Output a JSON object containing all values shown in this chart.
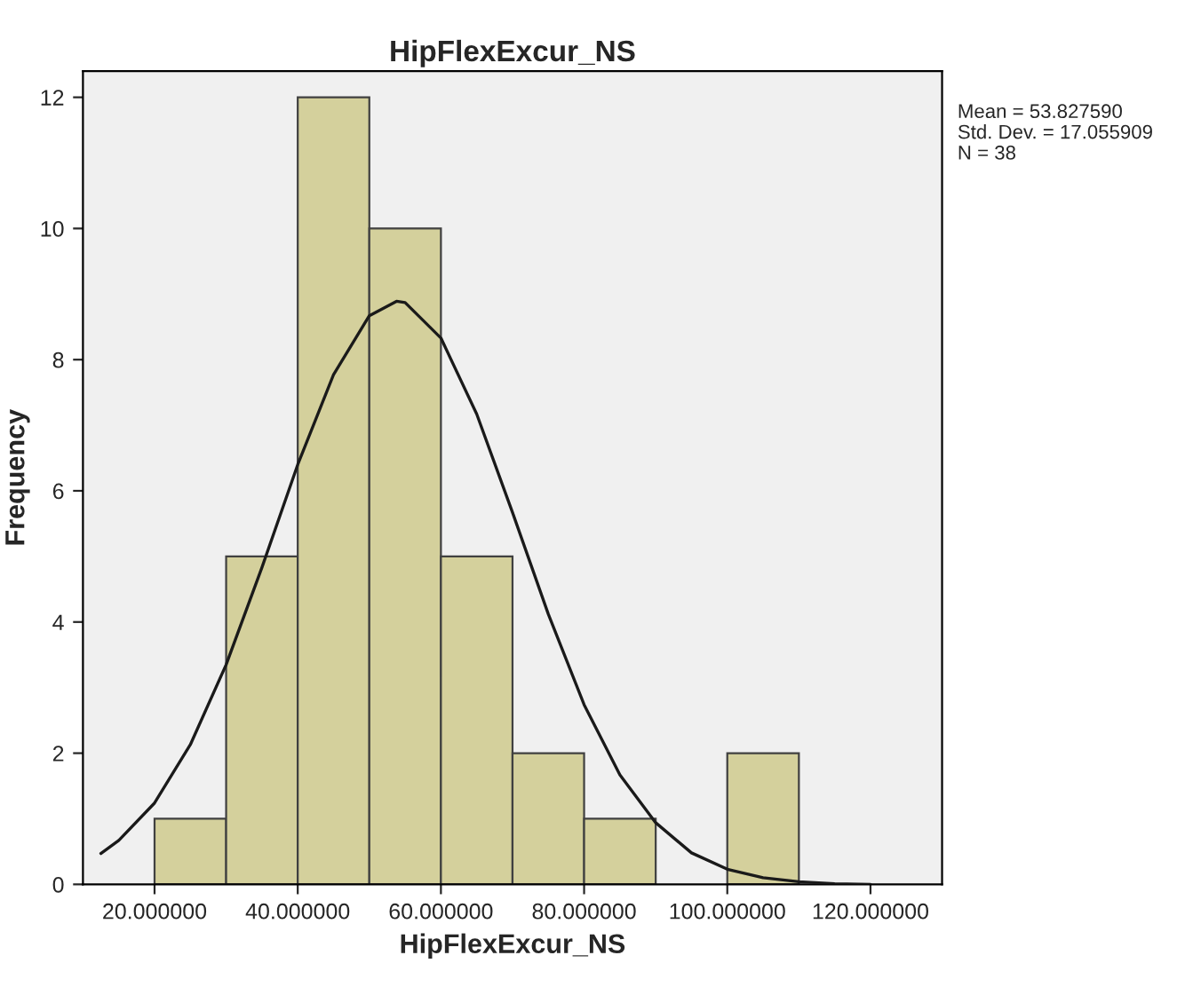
{
  "chart_data": {
    "type": "histogram",
    "title": "HipFlexExcur_NS",
    "xlabel": "HipFlexExcur_NS",
    "ylabel": "Frequency",
    "bins": [
      20,
      30,
      40,
      50,
      60,
      70,
      80,
      90,
      100,
      110
    ],
    "values": [
      1,
      5,
      12,
      10,
      5,
      2,
      1,
      0,
      2
    ],
    "color": "#d4d09c",
    "series": [
      {
        "type": "line",
        "color": "#1a1a1a",
        "x": [
          12.5,
          15,
          20,
          25,
          30,
          35,
          40,
          45,
          50,
          53.8,
          55,
          60,
          65,
          70,
          75,
          80,
          85,
          90,
          95,
          100,
          105,
          110,
          115,
          120
        ],
        "values": [
          0.47,
          0.67,
          1.24,
          2.13,
          3.35,
          4.83,
          6.4,
          7.77,
          8.67,
          8.89,
          8.87,
          8.33,
          7.17,
          5.67,
          4.12,
          2.74,
          1.67,
          0.94,
          0.48,
          0.23,
          0.1,
          0.04,
          0.01,
          0.0
        ]
      }
    ],
    "xlim": [
      10,
      130
    ],
    "ylim": [
      0,
      12.4
    ],
    "xticks": [
      {
        "value": 20,
        "label": "20.000000"
      },
      {
        "value": 40,
        "label": "40.000000"
      },
      {
        "value": 60,
        "label": "60.000000"
      },
      {
        "value": 80,
        "label": "80.000000"
      },
      {
        "value": 100,
        "label": "100.000000"
      },
      {
        "value": 120,
        "label": "120.000000"
      }
    ],
    "yticks": [
      0,
      2,
      4,
      6,
      8,
      10,
      12
    ],
    "grid": false,
    "legend": false,
    "annotations": [
      "Mean = 53.827590",
      "Std. Dev. = 17.055909",
      "N = 38"
    ]
  }
}
